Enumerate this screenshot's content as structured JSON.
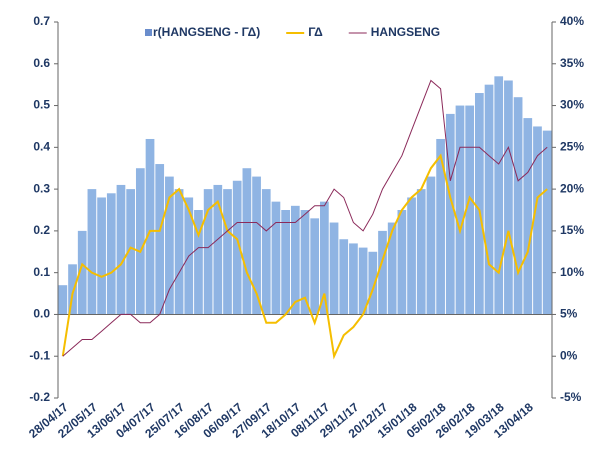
{
  "chart_data": {
    "type": "bar-line",
    "categories": [
      "28/04/17",
      null,
      null,
      "22/05/17",
      null,
      null,
      "13/06/17",
      null,
      null,
      "04/07/17",
      null,
      null,
      "25/07/17",
      null,
      null,
      "16/08/17",
      null,
      null,
      "06/09/17",
      null,
      null,
      "27/09/17",
      null,
      null,
      "18/10/17",
      null,
      null,
      "08/11/17",
      null,
      null,
      "29/11/17",
      null,
      null,
      "20/12/17",
      null,
      null,
      "15/01/18",
      null,
      null,
      "05/02/18",
      null,
      null,
      "26/02/18",
      null,
      null,
      "19/03/18",
      null,
      null,
      "13/04/18",
      null,
      null
    ],
    "series": [
      {
        "name": "r(HANGSENG - ΓΔ)",
        "type": "bar",
        "color": "#8fb4e3",
        "values": [
          0.07,
          0.12,
          0.2,
          0.3,
          0.28,
          0.29,
          0.31,
          0.3,
          0.35,
          0.42,
          0.36,
          0.33,
          0.3,
          0.28,
          0.25,
          0.3,
          0.31,
          0.3,
          0.32,
          0.35,
          0.33,
          0.3,
          0.27,
          0.25,
          0.26,
          0.25,
          0.23,
          0.27,
          0.22,
          0.18,
          0.17,
          0.16,
          0.15,
          0.2,
          0.22,
          0.25,
          0.28,
          0.3,
          0.33,
          0.42,
          0.48,
          0.5,
          0.5,
          0.53,
          0.55,
          0.57,
          0.56,
          0.52,
          0.47,
          0.45,
          0.44
        ]
      },
      {
        "name": "ΓΔ",
        "type": "line",
        "color": "#f5be00",
        "values": [
          -0.1,
          0.05,
          0.12,
          0.1,
          0.09,
          0.1,
          0.12,
          0.16,
          0.15,
          0.2,
          0.2,
          0.28,
          0.3,
          0.25,
          0.19,
          0.25,
          0.27,
          0.2,
          0.18,
          0.1,
          0.05,
          -0.02,
          -0.02,
          0.0,
          0.03,
          0.04,
          -0.02,
          0.05,
          -0.1,
          -0.05,
          -0.03,
          0.0,
          0.06,
          0.13,
          0.2,
          0.25,
          0.28,
          0.3,
          0.35,
          0.38,
          0.28,
          0.2,
          0.28,
          0.25,
          0.12,
          0.1,
          0.2,
          0.1,
          0.15,
          0.28,
          0.3
        ]
      },
      {
        "name": "HANGSENG",
        "type": "line",
        "axis": "y2",
        "color": "#8b2a5a",
        "values": [
          0,
          1,
          2,
          2,
          3,
          4,
          5,
          5,
          4,
          4,
          5,
          8,
          10,
          12,
          13,
          13,
          14,
          15,
          16,
          16,
          16,
          15,
          16,
          16,
          16,
          17,
          18,
          18,
          20,
          19,
          16,
          15,
          17,
          20,
          22,
          24,
          27,
          30,
          33,
          32,
          21,
          25,
          25,
          25,
          24,
          23,
          25,
          21,
          22,
          24,
          25
        ]
      }
    ],
    "ylim": [
      -0.2,
      0.7
    ],
    "yticks": [
      -0.2,
      -0.1,
      {
        "value": 0,
        "label": "0.0"
      },
      0.1,
      0.2,
      0.3,
      0.4,
      0.5,
      0.6,
      0.7
    ],
    "y2lim": [
      -5,
      40
    ],
    "y2ticks": [
      {
        "value": -5,
        "label": "-5%"
      },
      {
        "value": 0,
        "label": "0%"
      },
      {
        "value": 5,
        "label": "5%"
      },
      {
        "value": 10,
        "label": "10%"
      },
      {
        "value": 15,
        "label": "15%"
      },
      {
        "value": 20,
        "label": "20%"
      },
      {
        "value": 25,
        "label": "25%"
      },
      {
        "value": 30,
        "label": "30%"
      },
      {
        "value": 35,
        "label": "35%"
      },
      {
        "value": 40,
        "label": "40%"
      }
    ]
  }
}
